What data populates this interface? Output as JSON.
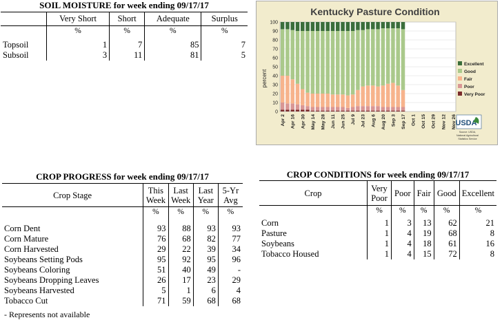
{
  "soil": {
    "title": "SOIL MOISTURE for week ending 09/17/17",
    "headers": [
      "",
      "Very Short",
      "Short",
      "Adequate",
      "Surplus"
    ],
    "units": [
      "",
      "%",
      "%",
      "%",
      "%"
    ],
    "rows": [
      {
        "label": "Topsoil",
        "values": [
          "1",
          "7",
          "85",
          "7"
        ]
      },
      {
        "label": "Subsoil",
        "values": [
          "3",
          "11",
          "81",
          "5"
        ]
      }
    ]
  },
  "progress": {
    "title": "CROP PROGRESS for week ending 09/17/17",
    "headers": [
      "Crop Stage",
      "This Week",
      "Last Week",
      "Last Year",
      "5-Yr Avg"
    ],
    "units": [
      "",
      "%",
      "%",
      "%",
      "%"
    ],
    "rows": [
      {
        "label": "Corn Dent",
        "values": [
          "93",
          "88",
          "93",
          "93"
        ]
      },
      {
        "label": "Corn Mature",
        "values": [
          "76",
          "68",
          "82",
          "77"
        ]
      },
      {
        "label": "Corn Harvested",
        "values": [
          "29",
          "22",
          "39",
          "34"
        ]
      },
      {
        "label": "Soybeans Setting Pods",
        "values": [
          "95",
          "92",
          "95",
          "96"
        ]
      },
      {
        "label": "Soybeans Coloring",
        "values": [
          "51",
          "40",
          "49",
          "-"
        ]
      },
      {
        "label": "Soybeans Dropping Leaves",
        "values": [
          "26",
          "17",
          "23",
          "29"
        ]
      },
      {
        "label": "Soybeans Harvested",
        "values": [
          "5",
          "1",
          "6",
          "4"
        ]
      },
      {
        "label": "Tobacco Cut",
        "values": [
          "71",
          "59",
          "68",
          "68"
        ]
      }
    ],
    "footnote": "- Represents not available"
  },
  "conditions": {
    "title": "CROP CONDITIONS for week ending 09/17/17",
    "headers": [
      "Crop",
      "Very Poor",
      "Poor",
      "Fair",
      "Good",
      "Excellent"
    ],
    "units": [
      "",
      "%",
      "%",
      "%",
      "%",
      "%"
    ],
    "rows": [
      {
        "label": "Corn",
        "values": [
          "1",
          "3",
          "13",
          "62",
          "21"
        ]
      },
      {
        "label": "Pasture",
        "values": [
          "1",
          "4",
          "19",
          "68",
          "8"
        ]
      },
      {
        "label": "Soybeans",
        "values": [
          "1",
          "4",
          "18",
          "61",
          "16"
        ]
      },
      {
        "label": "Tobacco Housed",
        "values": [
          "1",
          "4",
          "15",
          "72",
          "8"
        ]
      }
    ]
  },
  "chart_data": {
    "type": "bar",
    "stacked": true,
    "title": "Kentucky Pasture Condition",
    "ylabel": "percent",
    "ylim": [
      0,
      100
    ],
    "yticks": [
      0,
      10,
      20,
      30,
      40,
      50,
      60,
      70,
      80,
      90,
      100
    ],
    "x_tick_labels": [
      "Apr 2",
      "Apr 16",
      "Apr 30",
      "May 14",
      "May 28",
      "Jun 11",
      "Jun 25",
      "Jul 9",
      "Jul 23",
      "Aug 6",
      "Aug 20",
      "Sep 3",
      "Sep 17",
      "Oct 1",
      "Oct 15",
      "Oct 29",
      "Nov 12",
      "Nov 26"
    ],
    "categories": [
      "Apr 2",
      "Apr 9",
      "Apr 16",
      "Apr 23",
      "Apr 30",
      "May 7",
      "May 14",
      "May 21",
      "May 28",
      "Jun 4",
      "Jun 11",
      "Jun 18",
      "Jun 25",
      "Jul 2",
      "Jul 9",
      "Jul 16",
      "Jul 23",
      "Jul 30",
      "Aug 6",
      "Aug 13",
      "Aug 20",
      "Aug 27",
      "Sep 3",
      "Sep 10",
      "Sep 17"
    ],
    "series": [
      {
        "name": "Very Poor",
        "color": "#7b2c2c",
        "values": [
          2,
          2,
          2,
          2,
          2,
          2,
          1,
          1,
          1,
          1,
          1,
          1,
          1,
          1,
          1,
          1,
          1,
          1,
          1,
          1,
          1,
          1,
          1,
          1,
          1
        ]
      },
      {
        "name": "Poor",
        "color": "#d99694",
        "values": [
          8,
          7,
          7,
          6,
          5,
          4,
          4,
          4,
          4,
          4,
          4,
          4,
          4,
          3,
          4,
          5,
          5,
          5,
          5,
          5,
          4,
          4,
          4,
          4,
          4
        ]
      },
      {
        "name": "Fair",
        "color": "#f7b38c",
        "values": [
          30,
          31,
          27,
          23,
          18,
          15,
          15,
          15,
          15,
          15,
          14,
          14,
          14,
          14,
          14,
          18,
          22,
          23,
          23,
          22,
          24,
          26,
          27,
          24,
          19
        ]
      },
      {
        "name": "Good",
        "color": "#aac98b",
        "values": [
          52,
          52,
          55,
          59,
          65,
          69,
          70,
          70,
          70,
          70,
          71,
          71,
          71,
          72,
          71,
          67,
          63,
          63,
          63,
          64,
          64,
          62,
          61,
          64,
          68
        ]
      },
      {
        "name": "Excellent",
        "color": "#3b6e3b",
        "values": [
          8,
          8,
          9,
          10,
          10,
          10,
          10,
          10,
          10,
          10,
          10,
          10,
          10,
          10,
          10,
          9,
          9,
          8,
          8,
          8,
          7,
          7,
          7,
          7,
          8
        ]
      }
    ],
    "legend": [
      "Excellent",
      "Good",
      "Fair",
      "Poor",
      "Very Poor"
    ],
    "legend_position": "right",
    "source_text": [
      "Source: USDA,",
      "National Agricultural",
      "Statistics Service"
    ],
    "logo_text": "USDA"
  }
}
